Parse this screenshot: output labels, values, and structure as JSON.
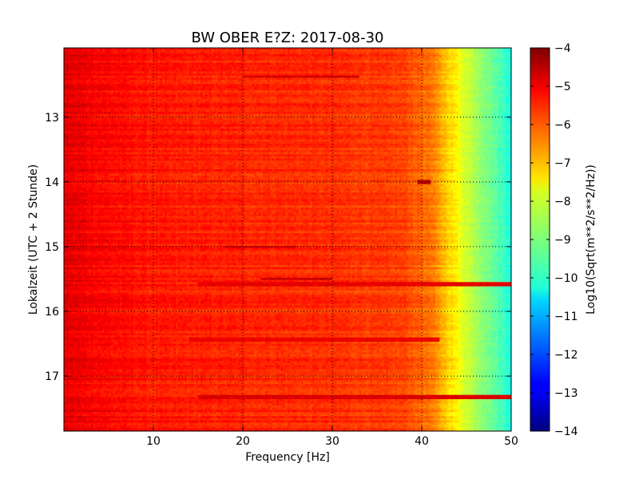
{
  "chart_data": {
    "type": "heatmap",
    "title": "BW OBER E?Z: 2017-08-30",
    "xlabel": "Frequency [Hz]",
    "ylabel": "Lokalzeit (UTC + 2 Stunde)",
    "xlim": [
      0,
      50
    ],
    "ylim": [
      17.85,
      11.93
    ],
    "x_ticks": [
      10,
      20,
      30,
      40,
      50
    ],
    "x_tick_labels": [
      "10",
      "20",
      "30",
      "40",
      "50"
    ],
    "y_ticks": [
      13,
      14,
      15,
      16,
      17
    ],
    "y_tick_labels": [
      "13",
      "14",
      "15",
      "16",
      "17"
    ],
    "grid": true,
    "colormap": "jet",
    "colorbar": {
      "label": "Log10(Sqrt(m**2/s**2/Hz))",
      "range": [
        -14,
        -4
      ],
      "ticks": [
        -4,
        -5,
        -6,
        -7,
        -8,
        -9,
        -10,
        -11,
        -12,
        -13,
        -14
      ],
      "tick_labels": [
        "−4",
        "−5",
        "−6",
        "−7",
        "−8",
        "−9",
        "−10",
        "−11",
        "−12",
        "−13",
        "−14"
      ]
    },
    "spectrum_profile": {
      "frequency_hz": [
        0,
        5,
        10,
        20,
        30,
        38,
        41,
        43,
        45,
        47,
        49,
        50
      ],
      "log10_amplitude": [
        -5.0,
        -5.3,
        -5.5,
        -5.6,
        -5.7,
        -5.9,
        -6.4,
        -7.3,
        -8.2,
        -8.9,
        -9.6,
        -10.0
      ]
    },
    "features": [
      {
        "time": 12.38,
        "freq_range": [
          20,
          33
        ],
        "log10_amplitude": -4.8
      },
      {
        "time": 15.0,
        "freq_range": [
          18,
          26
        ],
        "log10_amplitude": -4.9
      },
      {
        "time": 15.5,
        "freq_range": [
          22,
          30
        ],
        "log10_amplitude": -4.7
      },
      {
        "time": 15.58,
        "freq_range": [
          15,
          50
        ],
        "log10_amplitude": -5.0
      },
      {
        "time": 16.43,
        "freq_range": [
          14,
          42
        ],
        "log10_amplitude": -5.1
      },
      {
        "time": 17.32,
        "freq_range": [
          15,
          50
        ],
        "log10_amplitude": -4.9
      },
      {
        "time": 14.0,
        "freq_range": [
          39.5,
          41
        ],
        "log10_amplitude": -4.6
      }
    ]
  }
}
